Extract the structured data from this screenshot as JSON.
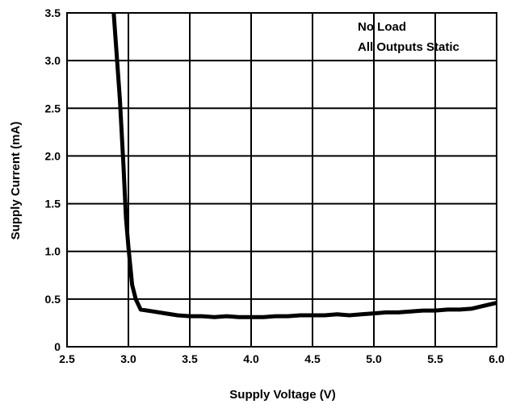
{
  "chart_data": {
    "type": "line",
    "title": "",
    "xlabel": "Supply Voltage (V)",
    "ylabel": "Supply Current (mA)",
    "xlim": [
      2.5,
      6.0
    ],
    "ylim": [
      0,
      3.5
    ],
    "x_ticks": [
      "2.5",
      "3.0",
      "3.5",
      "4.0",
      "4.5",
      "5.0",
      "5.5",
      "6.0"
    ],
    "y_ticks": [
      "0",
      "0.5",
      "1.0",
      "1.5",
      "2.0",
      "2.5",
      "3.0",
      "3.5"
    ],
    "grid": true,
    "annotations": [
      "No Load",
      "All Outputs Static"
    ],
    "series": [
      {
        "color": "#000000",
        "x": [
          2.88,
          2.93,
          2.96,
          2.98,
          3.0,
          3.03,
          3.06,
          3.1,
          3.2,
          3.3,
          3.4,
          3.5,
          3.6,
          3.7,
          3.8,
          3.9,
          4.0,
          4.1,
          4.2,
          4.3,
          4.4,
          4.5,
          4.6,
          4.7,
          4.8,
          4.9,
          5.0,
          5.1,
          5.2,
          5.3,
          5.4,
          5.5,
          5.6,
          5.7,
          5.8,
          5.9,
          6.0
        ],
        "y": [
          3.5,
          2.6,
          1.9,
          1.35,
          1.05,
          0.65,
          0.5,
          0.39,
          0.37,
          0.35,
          0.33,
          0.32,
          0.32,
          0.31,
          0.32,
          0.31,
          0.31,
          0.31,
          0.32,
          0.32,
          0.33,
          0.33,
          0.33,
          0.34,
          0.33,
          0.34,
          0.35,
          0.36,
          0.36,
          0.37,
          0.38,
          0.38,
          0.39,
          0.39,
          0.4,
          0.43,
          0.46
        ]
      }
    ]
  }
}
